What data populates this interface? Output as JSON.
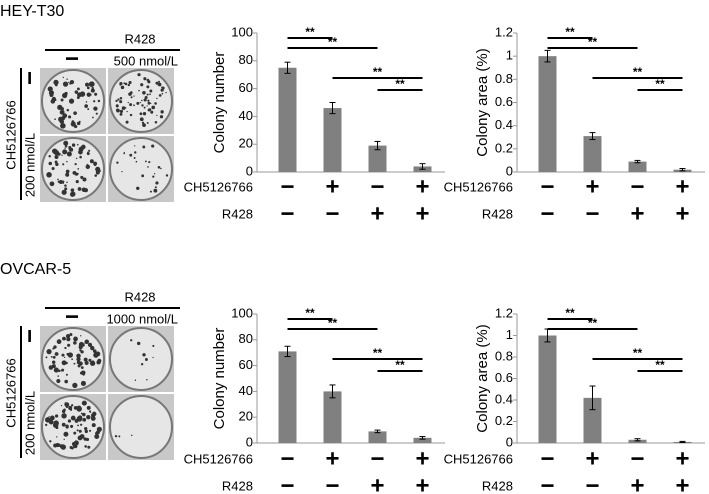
{
  "panels": [
    {
      "title": "HEY-T30",
      "treatment": "R428",
      "treatment_levels": [
        "−",
        "500 nmol/L"
      ],
      "pretreatment": "CH5126766",
      "pretreatment_levels": [
        "−",
        "200 nmol/L"
      ]
    },
    {
      "title": "OVCAR-5",
      "treatment": "R428",
      "treatment_levels": [
        "−",
        "1000 nmol/L"
      ],
      "pretreatment": "CH5126766",
      "pretreatment_levels": [
        "−",
        "200 nmol/L"
      ]
    }
  ],
  "chart_data": [
    {
      "type": "bar",
      "y_label": "Colony number",
      "values": [
        75,
        46,
        19,
        4
      ],
      "errors": [
        4,
        4,
        3,
        2
      ],
      "color": "#808080",
      "ylim": [
        0,
        100
      ],
      "yticks": [
        0,
        20,
        40,
        60,
        80,
        100
      ],
      "conditions": [
        {
          "name": "CH5126766",
          "signs": [
            "−",
            "+",
            "−",
            "+"
          ]
        },
        {
          "name": "R428",
          "signs": [
            "−",
            "−",
            "+",
            "+"
          ]
        }
      ],
      "significance": [
        {
          "from": 0,
          "to": 1,
          "label": "**"
        },
        {
          "from": 0,
          "to": 2,
          "label": "**"
        },
        {
          "from": 1,
          "to": 3,
          "label": "**"
        },
        {
          "from": 2,
          "to": 3,
          "label": "**"
        }
      ]
    },
    {
      "type": "bar",
      "y_label": "Colony area (%)",
      "values": [
        1.0,
        0.31,
        0.09,
        0.02
      ],
      "errors": [
        0.05,
        0.03,
        0.01,
        0.01
      ],
      "color": "#808080",
      "ylim": [
        0,
        1.2
      ],
      "yticks": [
        0,
        0.2,
        0.4,
        0.6,
        0.8,
        1,
        1.2
      ],
      "conditions": [
        {
          "name": "CH5126766",
          "signs": [
            "−",
            "+",
            "−",
            "+"
          ]
        },
        {
          "name": "R428",
          "signs": [
            "−",
            "−",
            "+",
            "+"
          ]
        }
      ],
      "significance": [
        {
          "from": 0,
          "to": 1,
          "label": "**"
        },
        {
          "from": 0,
          "to": 2,
          "label": "**"
        },
        {
          "from": 1,
          "to": 3,
          "label": "**"
        },
        {
          "from": 2,
          "to": 3,
          "label": "**"
        }
      ]
    },
    {
      "type": "bar",
      "y_label": "Colony number",
      "values": [
        71,
        40,
        9,
        4
      ],
      "errors": [
        4,
        5,
        1,
        1
      ],
      "color": "#808080",
      "ylim": [
        0,
        100
      ],
      "yticks": [
        0,
        20,
        40,
        60,
        80,
        100
      ],
      "conditions": [
        {
          "name": "CH5126766",
          "signs": [
            "−",
            "+",
            "−",
            "+"
          ]
        },
        {
          "name": "R428",
          "signs": [
            "−",
            "−",
            "+",
            "+"
          ]
        }
      ],
      "significance": [
        {
          "from": 0,
          "to": 1,
          "label": "**"
        },
        {
          "from": 0,
          "to": 2,
          "label": "**"
        },
        {
          "from": 1,
          "to": 3,
          "label": "**"
        },
        {
          "from": 2,
          "to": 3,
          "label": "**"
        }
      ]
    },
    {
      "type": "bar",
      "y_label": "Colony area (%)",
      "values": [
        1.0,
        0.42,
        0.03,
        0.01
      ],
      "errors": [
        0.06,
        0.11,
        0.01,
        0.005
      ],
      "color": "#808080",
      "ylim": [
        0,
        1.2
      ],
      "yticks": [
        0,
        0.2,
        0.4,
        0.6,
        0.8,
        1,
        1.2
      ],
      "conditions": [
        {
          "name": "CH5126766",
          "signs": [
            "−",
            "+",
            "−",
            "+"
          ]
        },
        {
          "name": "R428",
          "signs": [
            "−",
            "−",
            "+",
            "+"
          ]
        }
      ],
      "significance": [
        {
          "from": 0,
          "to": 1,
          "label": "**"
        },
        {
          "from": 0,
          "to": 2,
          "label": "**"
        },
        {
          "from": 1,
          "to": 3,
          "label": "**"
        },
        {
          "from": 2,
          "to": 3,
          "label": "**"
        }
      ]
    }
  ]
}
